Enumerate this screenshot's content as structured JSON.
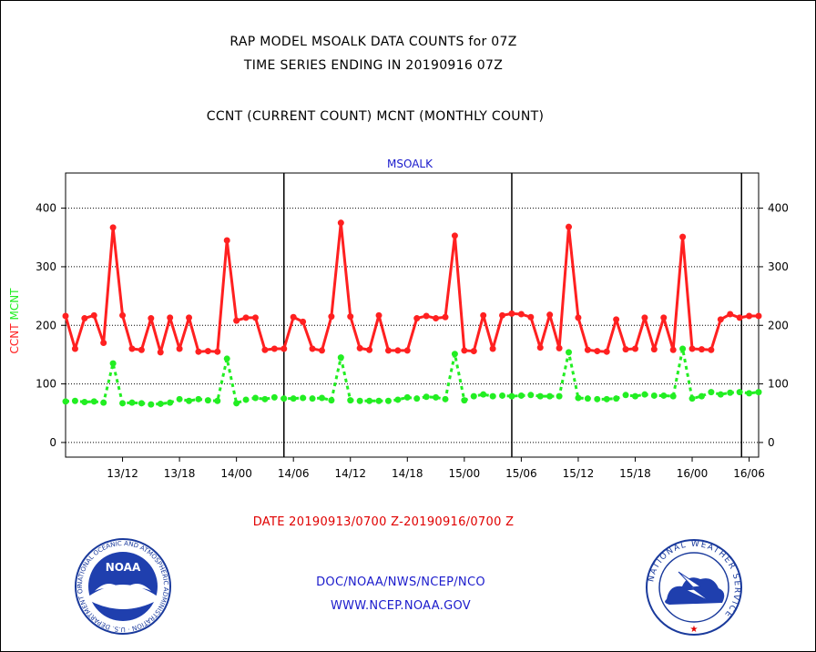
{
  "header": {
    "title_line1": "RAP MODEL MSOALK DATA COUNTS for 07Z",
    "title_line2": "TIME SERIES ENDING IN 20190916 07Z",
    "subtitle": "CCNT (CURRENT COUNT) MCNT (MONTHLY COUNT)"
  },
  "footer": {
    "date_range": "DATE 20190913/0700 Z-20190916/0700 Z",
    "org_line": "DOC/NOAA/NWS/NCEP/NCO",
    "url_line": "WWW.NCEP.NOAA.GOV",
    "noaa_logo_text": "NOAA",
    "noaa_ring_text": "NATIONAL OCEANIC AND ATMOSPHERIC ADMINISTRATION · U.S. DEPARTMENT OF COMMERCE",
    "nws_ring_text": "NATIONAL WEATHER SERVICE"
  },
  "colors": {
    "ccnt": "#ff2020",
    "mcnt": "#22ee22",
    "title": "#000000",
    "date_text": "#e00000",
    "link_text": "#1a1acc"
  },
  "chart_data": {
    "type": "line",
    "title": "MSOALK",
    "ylabel_ccnt": "CCNT",
    "ylabel_mcnt": "MCNT",
    "ylim": [
      -25,
      460
    ],
    "yticks": [
      0,
      100,
      200,
      300,
      400
    ],
    "ytick_labels": [
      "0",
      "100",
      "200",
      "300",
      "400"
    ],
    "xticks_hours": [
      6,
      12,
      18,
      24,
      30,
      36,
      42,
      48,
      54,
      60,
      66,
      72
    ],
    "xtick_labels": [
      "13/12",
      "13/18",
      "14/00",
      "14/06",
      "14/12",
      "14/18",
      "15/00",
      "15/06",
      "15/12",
      "15/18",
      "16/00",
      "16/06"
    ],
    "xlim_hours": [
      0,
      73
    ],
    "day_boundaries_hours": [
      23,
      47,
      71.2
    ],
    "grid": true,
    "series": [
      {
        "name": "CCNT",
        "x_hours": [
          0,
          1,
          2,
          3,
          4,
          5,
          6,
          7,
          8,
          9,
          10,
          11,
          12,
          13,
          14,
          15,
          16,
          17,
          18,
          19,
          20,
          21,
          22,
          23,
          24,
          25,
          26,
          27,
          28,
          29,
          30,
          31,
          32,
          33,
          34,
          35,
          36,
          37,
          38,
          39,
          40,
          41,
          42,
          43,
          44,
          45,
          46,
          47,
          48,
          49,
          50,
          51,
          52,
          53,
          54,
          55,
          56,
          57,
          58,
          59,
          60,
          61,
          62,
          63,
          64,
          65,
          66,
          67,
          68,
          69,
          70,
          71,
          72,
          73
        ],
        "values": [
          216,
          160,
          212,
          217,
          170,
          367,
          217,
          160,
          158,
          212,
          154,
          213,
          160,
          213,
          155,
          156,
          155,
          345,
          208,
          213,
          213,
          158,
          160,
          160,
          214,
          206,
          160,
          157,
          215,
          375,
          215,
          161,
          158,
          217,
          157,
          157,
          157,
          212,
          216,
          212,
          214,
          353,
          157,
          156,
          217,
          160,
          217,
          220,
          219,
          214,
          162,
          218,
          161,
          368,
          213,
          158,
          156,
          155,
          210,
          159,
          160,
          213,
          159,
          213,
          158,
          351,
          160,
          159,
          158,
          210,
          219,
          213,
          216,
          216
        ]
      },
      {
        "name": "MCNT",
        "x_hours": [
          0,
          1,
          2,
          3,
          4,
          5,
          6,
          7,
          8,
          9,
          10,
          11,
          12,
          13,
          14,
          15,
          16,
          17,
          18,
          19,
          20,
          21,
          22,
          23,
          24,
          25,
          26,
          27,
          28,
          29,
          30,
          31,
          32,
          33,
          34,
          35,
          36,
          37,
          38,
          39,
          40,
          41,
          42,
          43,
          44,
          45,
          46,
          47,
          48,
          49,
          50,
          51,
          52,
          53,
          54,
          55,
          56,
          57,
          58,
          59,
          60,
          61,
          62,
          63,
          64,
          65,
          66,
          67,
          68,
          69,
          70,
          71,
          72,
          73
        ],
        "values": [
          70,
          71,
          69,
          70,
          68,
          135,
          67,
          68,
          67,
          65,
          66,
          68,
          74,
          71,
          74,
          72,
          71,
          143,
          67,
          73,
          76,
          74,
          77,
          75,
          75,
          76,
          75,
          76,
          72,
          145,
          72,
          71,
          71,
          71,
          71,
          73,
          77,
          75,
          78,
          77,
          74,
          151,
          72,
          79,
          82,
          79,
          80,
          79,
          80,
          81,
          79,
          79,
          79,
          154,
          76,
          75,
          74,
          74,
          75,
          81,
          79,
          82,
          80,
          80,
          79,
          160,
          75,
          79,
          86,
          82,
          85,
          86,
          84,
          86
        ]
      }
    ]
  }
}
